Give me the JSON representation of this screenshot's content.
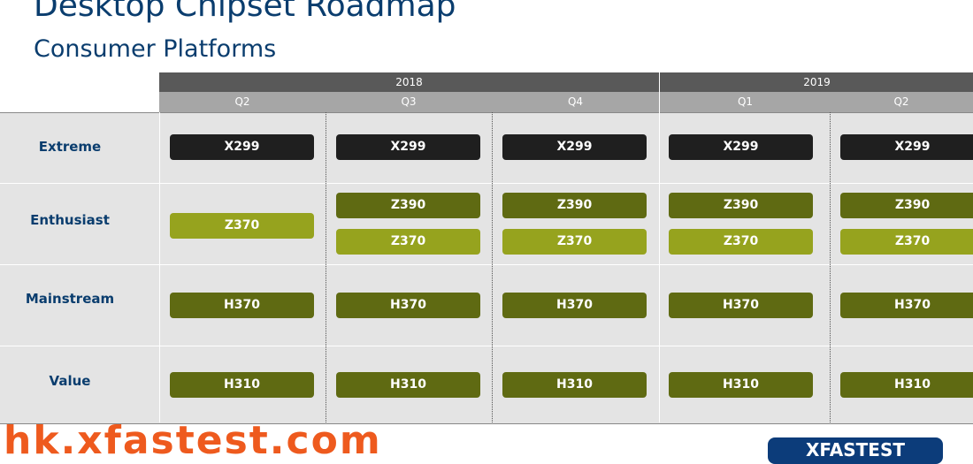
{
  "title": "Desktop Chipset Roadmap",
  "subtitle": "Consumer Platforms",
  "years": [
    "2018",
    "2019"
  ],
  "quarters": [
    "Q2",
    "Q3",
    "Q4",
    "Q1",
    "Q2"
  ],
  "segments": [
    "Extreme",
    "Enthusiast",
    "Mainstream",
    "Value"
  ],
  "chips": {
    "extreme": [
      "X299",
      "X299",
      "X299",
      "X299",
      "X299"
    ],
    "enthusiast_top": [
      "",
      "Z390",
      "Z390",
      "Z390",
      "Z390"
    ],
    "enthusiast_bottom": [
      "Z370",
      "Z370",
      "Z370",
      "Z370",
      "Z370"
    ],
    "mainstream": [
      "H370",
      "H370",
      "H370",
      "H370",
      "H370"
    ],
    "value": [
      "H310",
      "H310",
      "H310",
      "H310",
      "H310"
    ]
  },
  "watermark": "hk.xfastest.com",
  "logo": "XFASTEST",
  "colors": {
    "title": "#0a3d6e",
    "dark_chip": "#1f1f1f",
    "olive_chip": "#5f6a12",
    "light_chip": "#96a31e",
    "watermark": "#ee5a1e"
  }
}
